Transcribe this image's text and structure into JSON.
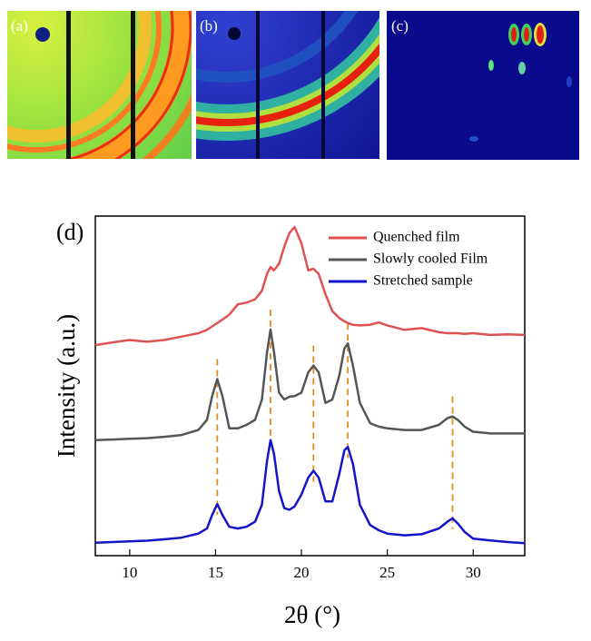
{
  "panels": [
    {
      "label": "(a)"
    },
    {
      "label": "(b)"
    },
    {
      "label": "(c)"
    }
  ],
  "chart_data": {
    "type": "line",
    "panel_label": "(d)",
    "x_label": "2θ (°)",
    "y_label": "Intensity (a.u.)",
    "xlim": [
      8,
      33
    ],
    "xticks": [
      10,
      15,
      20,
      25,
      30
    ],
    "ylim": [
      0,
      100
    ],
    "grid": false,
    "legend": "upper right",
    "x": [
      8,
      9,
      10,
      11,
      12,
      13,
      14,
      14.5,
      14.8,
      15.1,
      15.4,
      15.8,
      16.3,
      16.8,
      17.3,
      17.7,
      18.0,
      18.2,
      18.4,
      18.7,
      19.0,
      19.3,
      19.6,
      20.0,
      20.4,
      20.7,
      21.0,
      21.4,
      21.8,
      22.2,
      22.5,
      22.7,
      23.0,
      23.4,
      24.0,
      24.5,
      25,
      26,
      27,
      28,
      28.5,
      28.8,
      29.1,
      29.5,
      30,
      31,
      32,
      33
    ],
    "series": [
      {
        "name": "Quenched film",
        "color": "#e05252",
        "values": [
          62,
          62.8,
          63.5,
          63,
          63.5,
          64.5,
          65.5,
          66.5,
          67.5,
          68.5,
          69.5,
          71,
          74,
          74.5,
          75.5,
          78,
          83,
          85,
          84,
          86,
          91,
          95,
          96.8,
          92,
          84,
          84.5,
          83,
          77,
          72,
          70,
          69,
          68.5,
          68,
          67.8,
          68,
          68.7,
          67.8,
          66.5,
          67,
          65.8,
          65.5,
          65.5,
          65.5,
          65.3,
          65.5,
          65,
          65.2,
          65
        ]
      },
      {
        "name": "Slowly cooled Film",
        "color": "#555555",
        "values": [
          34,
          34.2,
          34.4,
          34.6,
          35,
          35.5,
          37,
          40,
          47,
          52,
          47,
          37.5,
          37.5,
          38.5,
          40,
          46,
          60,
          66.6,
          60,
          48,
          46,
          46.8,
          47,
          48,
          54,
          56,
          54,
          45,
          46,
          53,
          61,
          62.5,
          56,
          45,
          39,
          38,
          37.5,
          37,
          37,
          38.5,
          40.5,
          41,
          40,
          38,
          36.5,
          36,
          36,
          36
        ]
      },
      {
        "name": "Stretched sample",
        "color": "#1414c8",
        "values": [
          3.8,
          4.0,
          4.2,
          4.4,
          4.8,
          5.3,
          6.5,
          8,
          12,
          15.2,
          12,
          8.5,
          8,
          8.5,
          10,
          15,
          28,
          34,
          30,
          19,
          14,
          13.5,
          14.5,
          18,
          23,
          25,
          23,
          16,
          16,
          24,
          31,
          32,
          27,
          15,
          9,
          7.5,
          6.5,
          6,
          6.3,
          8,
          10,
          11,
          9.5,
          7,
          5,
          4.5,
          4,
          3.7
        ]
      }
    ],
    "reference_lines": {
      "x": [
        15.1,
        18.2,
        20.7,
        22.7,
        28.8
      ],
      "color": "#e8891e"
    }
  }
}
